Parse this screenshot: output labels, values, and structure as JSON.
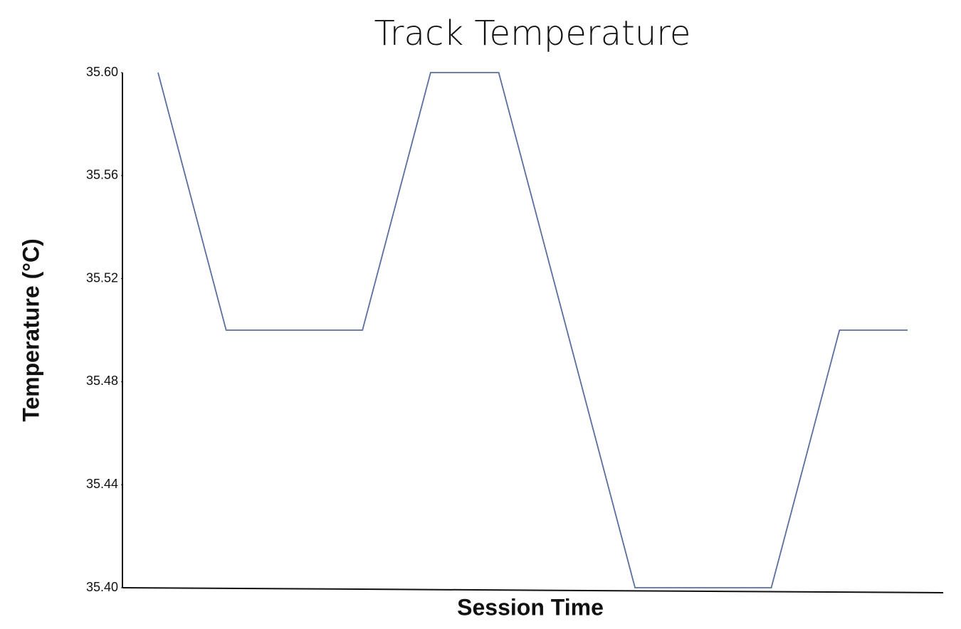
{
  "chart_data": {
    "type": "line",
    "title": "Track Temperature",
    "x_label": "Session Time",
    "y_label": "Temperature (°C)",
    "categories": [
      null,
      null,
      null,
      null,
      null,
      null,
      null,
      null,
      null,
      null,
      null,
      null
    ],
    "series": [
      {
        "name": null,
        "color": "#5b6e9e",
        "values": [
          35.6,
          35.5,
          35.5,
          35.5,
          35.6,
          35.6,
          35.5,
          35.4,
          35.4,
          35.4,
          35.5,
          35.5
        ]
      }
    ],
    "ylim": [
      35.4,
      35.6
    ],
    "yticks": [
      {
        "value": 35.4,
        "label": "35.40"
      },
      35.44,
      35.48,
      35.52,
      35.56,
      {
        "value": 35.6,
        "label": "35.60"
      }
    ],
    "grid": false
  }
}
